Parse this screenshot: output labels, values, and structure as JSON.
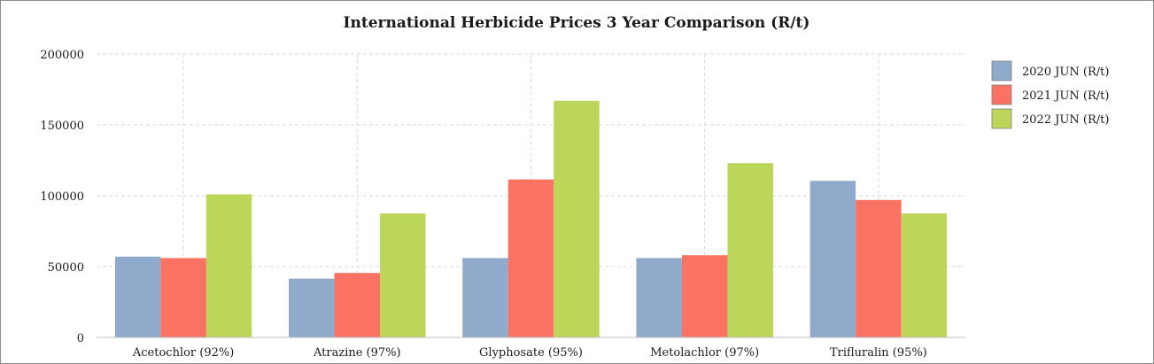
{
  "chart_data": {
    "type": "bar",
    "title": "International Herbicide Prices 3 Year Comparison (R/t)",
    "xlabel": "",
    "ylabel": "",
    "categories": [
      "Acetochlor (92%)",
      "Atrazine (97%)",
      "Glyphosate (95%)",
      "Metolachlor (97%)",
      "Trifluralin (95%)"
    ],
    "series": [
      {
        "name": "2020 JUN (R/t)",
        "color": "#8faacb",
        "values": [
          57000,
          41500,
          56000,
          56000,
          110500
        ]
      },
      {
        "name": "2021 JUN (R/t)",
        "color": "#fa7362",
        "values": [
          56000,
          45500,
          111500,
          58000,
          97000
        ]
      },
      {
        "name": "2022 JUN (R/t)",
        "color": "#bcd65a",
        "values": [
          101000,
          87500,
          167000,
          123000,
          87500
        ]
      }
    ],
    "ylim": [
      0,
      200000
    ],
    "yticks": [
      0,
      50000,
      100000,
      150000,
      200000
    ],
    "grid": true,
    "legend_position": "right"
  }
}
